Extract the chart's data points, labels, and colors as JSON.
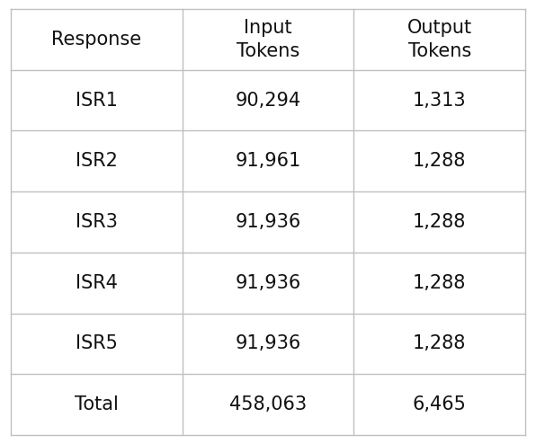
{
  "col_headers": [
    "Response",
    "Input\nTokens",
    "Output\nTokens"
  ],
  "rows": [
    [
      "ISR1",
      "90,294",
      "1,313"
    ],
    [
      "ISR2",
      "91,961",
      "1,288"
    ],
    [
      "ISR3",
      "91,936",
      "1,288"
    ],
    [
      "ISR4",
      "91,936",
      "1,288"
    ],
    [
      "ISR5",
      "91,936",
      "1,288"
    ],
    [
      "Total",
      "458,063",
      "6,465"
    ]
  ],
  "background_color": "#ffffff",
  "line_color": "#c0c0c0",
  "text_color": "#111111",
  "header_fontsize": 15,
  "cell_fontsize": 15,
  "fig_width": 5.96,
  "fig_height": 4.94,
  "dpi": 100
}
